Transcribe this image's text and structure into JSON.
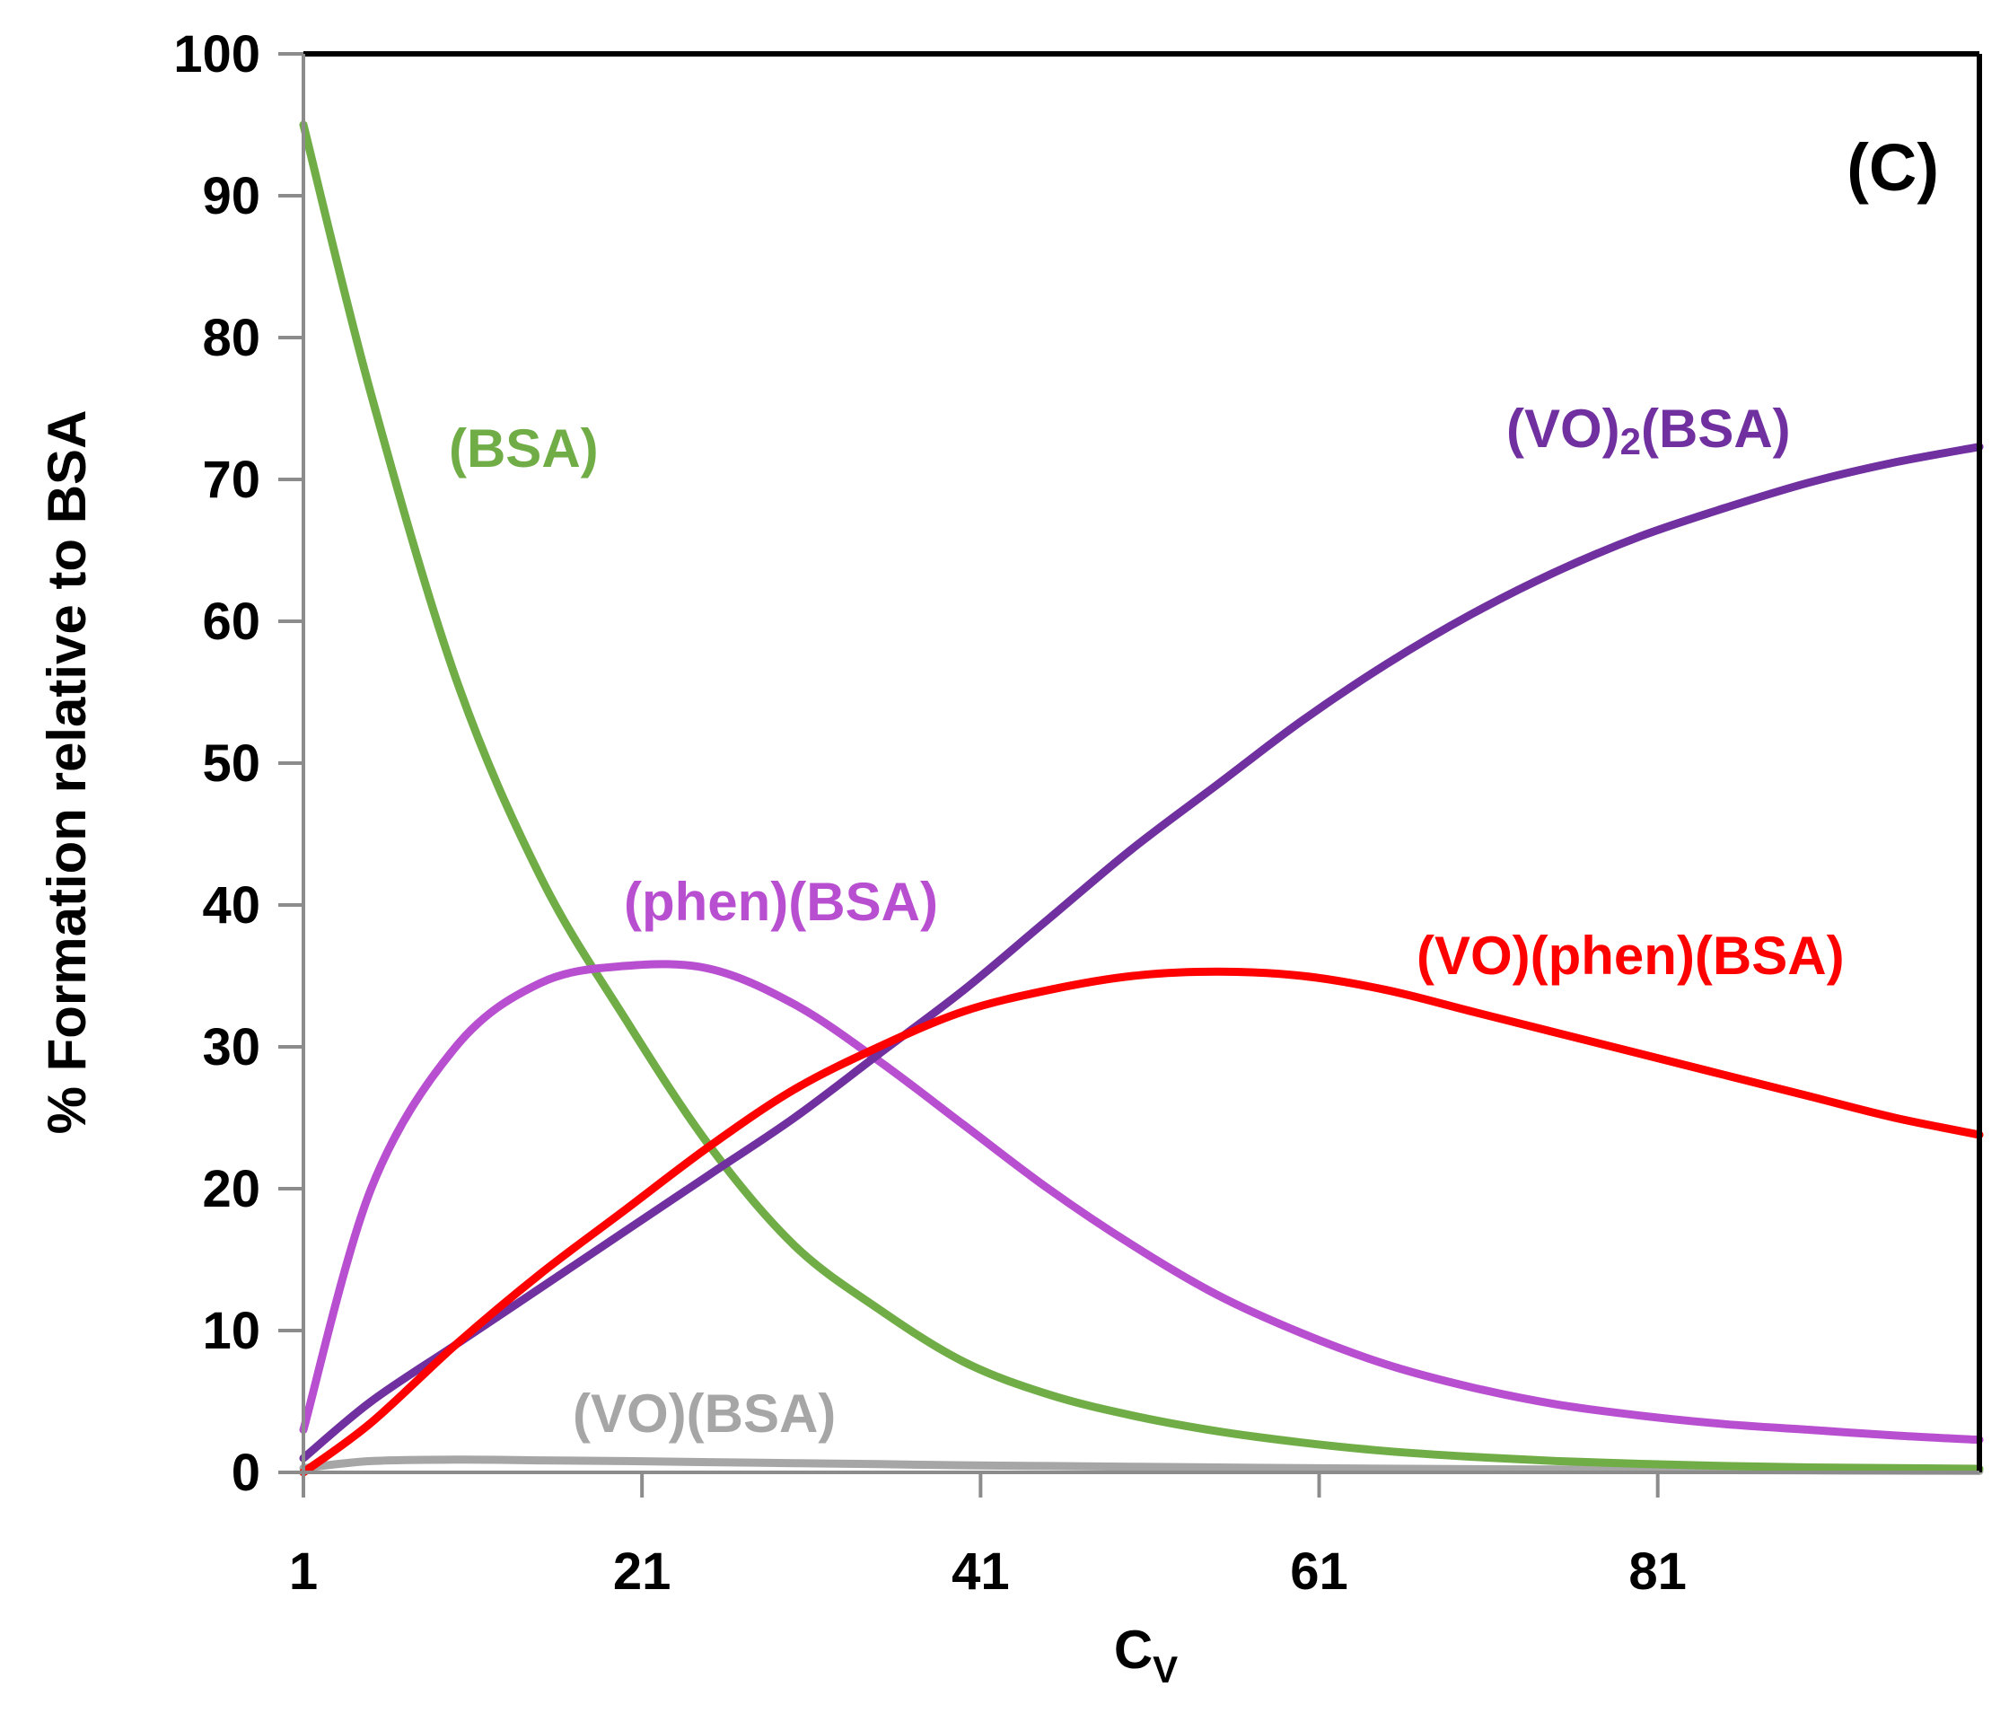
{
  "chart_data": {
    "type": "line",
    "panel_label": "(C)",
    "title": "",
    "xlabel_main": "C",
    "xlabel_sub": "V",
    "ylabel": "% Formation relative to BSA",
    "xlim": [
      1,
      100
    ],
    "ylim": [
      0,
      100
    ],
    "xticks": [
      "1",
      "21",
      "41",
      "61",
      "81"
    ],
    "yticks": [
      "0",
      "10",
      "20",
      "30",
      "40",
      "50",
      "60",
      "70",
      "80",
      "90",
      "100"
    ],
    "grid": false,
    "x": [
      1,
      5,
      10,
      15,
      20,
      25,
      30,
      35,
      40,
      45,
      50,
      55,
      60,
      65,
      70,
      75,
      80,
      85,
      90,
      95,
      100
    ],
    "series": [
      {
        "name": "(BSA)",
        "label_text": "(BSA)",
        "color": "#70AD47",
        "values": [
          95,
          76,
          56,
          42,
          32,
          23,
          16,
          11.5,
          7.8,
          5.5,
          4.0,
          2.9,
          2.1,
          1.5,
          1.1,
          0.8,
          0.6,
          0.45,
          0.35,
          0.3,
          0.25
        ]
      },
      {
        "name": "(VO)2(BSA)",
        "label_text": "(VO)",
        "label_sub": "2",
        "label_suffix": "(BSA)",
        "color": "#7030A0",
        "values": [
          1,
          5,
          9,
          13,
          17,
          21,
          25,
          29.5,
          34,
          39,
          44,
          48.5,
          53,
          57,
          60.5,
          63.5,
          66,
          68,
          69.8,
          71.2,
          72.3
        ]
      },
      {
        "name": "(phen)(BSA)",
        "label_text": "(phen)(BSA)",
        "color": "#B84FD0",
        "values": [
          3,
          20,
          30,
          34.5,
          35.7,
          35.5,
          33,
          29,
          24.5,
          20,
          16,
          12.5,
          9.8,
          7.6,
          6.0,
          4.8,
          4.0,
          3.4,
          3.0,
          2.6,
          2.3
        ]
      },
      {
        "name": "(VO)(phen)(BSA)",
        "label_text": "(VO)(phen)(BSA)",
        "color": "#FF0000",
        "values": [
          0,
          3.5,
          9,
          14,
          18.5,
          23,
          27,
          30,
          32.5,
          34,
          35,
          35.3,
          35,
          34,
          32.5,
          31,
          29.5,
          28,
          26.5,
          25,
          23.8
        ]
      },
      {
        "name": "(VO)(BSA)",
        "label_text": "(VO)(BSA)",
        "color": "#A6A6A6",
        "values": [
          0.3,
          0.8,
          0.9,
          0.85,
          0.8,
          0.72,
          0.65,
          0.58,
          0.5,
          0.45,
          0.4,
          0.35,
          0.3,
          0.26,
          0.23,
          0.2,
          0.18,
          0.16,
          0.14,
          0.12,
          0.1
        ]
      }
    ]
  }
}
